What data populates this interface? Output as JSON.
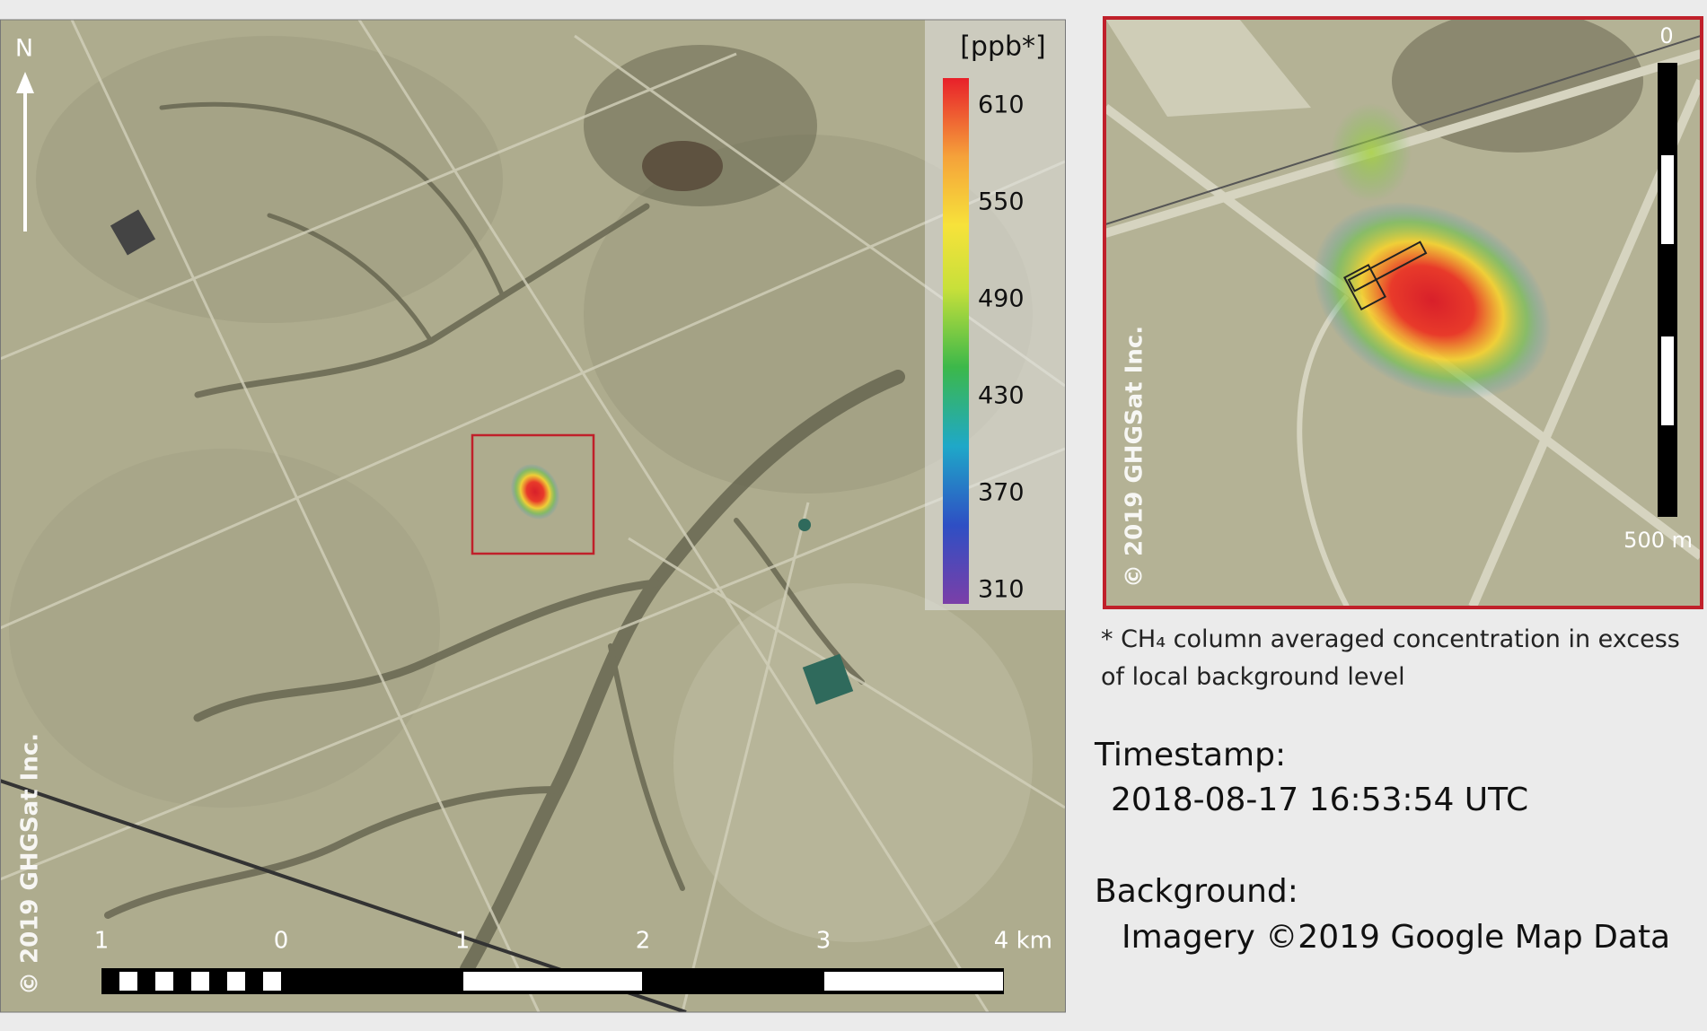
{
  "map": {
    "north": "N",
    "copyright": "© 2019 GHGSat Inc.",
    "colorbar": {
      "unit": "[ppb*]",
      "ticks": [
        610,
        550,
        490,
        430,
        370,
        310
      ]
    },
    "scale_bar": {
      "labels": [
        "1",
        "0",
        "1",
        "2",
        "3",
        "4 km"
      ]
    }
  },
  "inset": {
    "copyright": "© 2019 GHGSat Inc.",
    "scale_bar": {
      "labels": [
        "0",
        "500 m"
      ]
    }
  },
  "footnote": "* CH₄ column averaged concentration in excess of local background level",
  "timestamp": {
    "label": "Timestamp:",
    "value": "2018-08-17 16:53:54 UTC"
  },
  "background": {
    "label": "Background:",
    "value": "Imagery ©2019 Google Map Data"
  }
}
